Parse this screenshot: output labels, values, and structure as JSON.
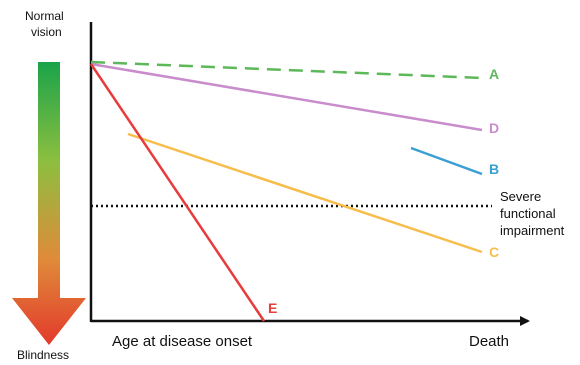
{
  "scale": {
    "top_label_line1": "Normal",
    "top_label_line2": "vision",
    "bottom_label": "Blindness",
    "gradient_colors": [
      "#1aa34a",
      "#8cbf3f",
      "#e08a3a",
      "#e23a2b"
    ]
  },
  "axes": {
    "x_left_label": "Age at disease onset",
    "x_right_label": "Death",
    "color": "#111111"
  },
  "threshold": {
    "line1": "Severe",
    "line2": "functional",
    "line3": "impairment",
    "color": "#111111"
  },
  "lines": [
    {
      "label": "A",
      "color": "#5db85a",
      "dashed": true
    },
    {
      "label": "D",
      "color": "#c98ccc",
      "dashed": false
    },
    {
      "label": "B",
      "color": "#3a9fd3",
      "dashed": false
    },
    {
      "label": "C",
      "color": "#f7bd4c",
      "dashed": false
    },
    {
      "label": "E",
      "color": "#e83b3b",
      "dashed": false
    }
  ]
}
